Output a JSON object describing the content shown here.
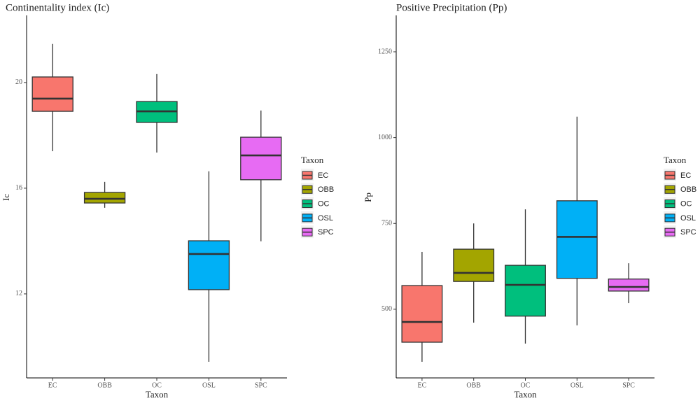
{
  "chart_data": [
    {
      "type": "box",
      "title": "Continentality index (Ic)",
      "x_label": "Taxon",
      "y_label": "Ic",
      "legend_title": "Taxon",
      "categories": [
        "EC",
        "OBB",
        "OC",
        "OSL",
        "SPC"
      ],
      "colors": [
        "#f8766d",
        "#a3a500",
        "#00bf7d",
        "#00b0f6",
        "#e76bf3"
      ],
      "boxes": [
        {
          "min": 17.4,
          "q1": 18.91,
          "median": 19.39,
          "q3": 20.21,
          "max": 21.46
        },
        {
          "min": 15.26,
          "q1": 15.44,
          "median": 15.6,
          "q3": 15.84,
          "max": 16.24
        },
        {
          "min": 17.35,
          "q1": 18.49,
          "median": 18.91,
          "q3": 19.28,
          "max": 20.32
        },
        {
          "min": 9.43,
          "q1": 12.16,
          "median": 13.51,
          "q3": 14.01,
          "max": 16.64
        },
        {
          "min": 13.99,
          "q1": 16.32,
          "median": 17.24,
          "q3": 17.93,
          "max": 18.94
        }
      ],
      "ylim": [
        8.82,
        22.54
      ],
      "yticks": [
        12,
        16,
        20
      ]
    },
    {
      "type": "box",
      "title": "Positive Precipitation (Pp)",
      "x_label": "Taxon",
      "y_label": "Pp",
      "legend_title": "Taxon",
      "categories": [
        "EC",
        "OBB",
        "OC",
        "OSL",
        "SPC"
      ],
      "colors": [
        "#f8766d",
        "#a3a500",
        "#00bf7d",
        "#00b0f6",
        "#e76bf3"
      ],
      "boxes": [
        {
          "min": 347,
          "q1": 404,
          "median": 463,
          "q3": 569,
          "max": 667
        },
        {
          "min": 461,
          "q1": 581,
          "median": 606,
          "q3": 675,
          "max": 750
        },
        {
          "min": 400,
          "q1": 480,
          "median": 571,
          "q3": 628,
          "max": 791
        },
        {
          "min": 453,
          "q1": 590,
          "median": 711,
          "q3": 816,
          "max": 1061
        },
        {
          "min": 518,
          "q1": 553,
          "median": 565,
          "q3": 588,
          "max": 634
        }
      ],
      "ylim": [
        300,
        1356
      ],
      "yticks": [
        500,
        750,
        1000,
        1250
      ]
    }
  ]
}
